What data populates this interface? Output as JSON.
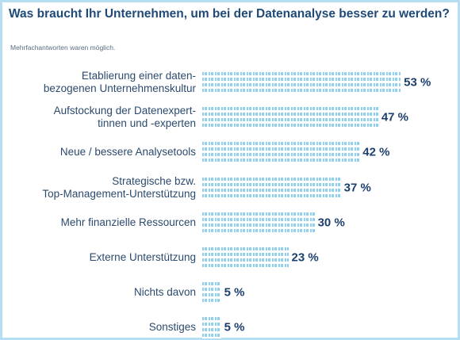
{
  "chart_data": {
    "type": "bar",
    "orientation": "horizontal",
    "title": "Was braucht Ihr Unternehmen, um bei der Datenanalyse besser zu werden?",
    "subtitle": "Mehrfachantworten waren möglich.",
    "categories": [
      "Etablierung einer daten-\nbezogenen Unternehmenskultur",
      "Aufstockung der Datenexpert-\ntinnen und -experten",
      "Neue / bessere Analysetools",
      "Strategische bzw.\nTop-Management-Unterstützung",
      "Mehr finanzielle Ressourcen",
      "Externe Unterstützung",
      "Nichts davon",
      "Sonstiges"
    ],
    "values": [
      53,
      47,
      42,
      37,
      30,
      23,
      5,
      5
    ],
    "value_labels": [
      "53 %",
      "47 %",
      "42 %",
      "37 %",
      "30 %",
      "23 %",
      "5 %",
      "5 %"
    ],
    "color": "#8fd0ee"
  }
}
